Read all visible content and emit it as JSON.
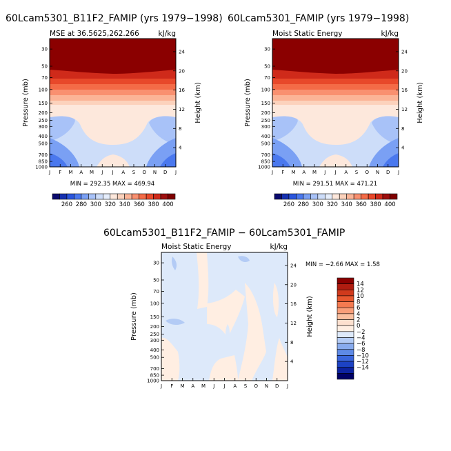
{
  "chart_data": [
    {
      "type": "heatmap",
      "title": "60Lcam5301_B11F2_FAMIP (yrs 1979−1998)",
      "left_string": "MSE at 36.5625,262.266",
      "right_string": "kJ/kg",
      "ylabel": "Pressure (mb)",
      "ylabel_right": "Height (km)",
      "x_ticks": [
        "J",
        "F",
        "M",
        "A",
        "M",
        "J",
        "J",
        "A",
        "S",
        "O",
        "N",
        "D",
        "J"
      ],
      "y_ticks": [
        "30",
        "50",
        "70",
        "100",
        "150",
        "200",
        "250",
        "300",
        "400",
        "500",
        "700",
        "850",
        "1000"
      ],
      "y_ticks_right": [
        "24",
        "20",
        "16",
        "12",
        "8",
        "4"
      ],
      "stats": "MIN = 292.35  MAX = 469.94",
      "colorbar_labels": [
        "260",
        "280",
        "300",
        "320",
        "340",
        "360",
        "380",
        "400"
      ],
      "colorbar_colors": [
        "#0a0a6e",
        "#1530b0",
        "#2a55dd",
        "#4a78ee",
        "#7aa0f4",
        "#a8c2f8",
        "#cdddf9",
        "#e6eefc",
        "#fde8dc",
        "#fcd2bc",
        "#fbb497",
        "#f99070",
        "#f46b47",
        "#e8482a",
        "#cf2a1a",
        "#9e0f0e",
        "#7f0000"
      ]
    },
    {
      "type": "heatmap",
      "title": "60Lcam5301_FAMIP (yrs 1979−1998)",
      "left_string": "Moist Static Energy",
      "right_string": "kJ/kg",
      "ylabel": "Pressure (mb)",
      "ylabel_right": "Height (km)",
      "x_ticks": [
        "J",
        "F",
        "M",
        "A",
        "M",
        "J",
        "J",
        "A",
        "S",
        "O",
        "N",
        "D",
        "J"
      ],
      "y_ticks": [
        "30",
        "50",
        "70",
        "100",
        "150",
        "200",
        "250",
        "300",
        "400",
        "500",
        "700",
        "850",
        "1000"
      ],
      "y_ticks_right": [
        "24",
        "20",
        "16",
        "12",
        "8",
        "4"
      ],
      "stats": "MIN = 291.51  MAX = 471.21",
      "colorbar_labels": [
        "260",
        "280",
        "300",
        "320",
        "340",
        "360",
        "380",
        "400"
      ],
      "colorbar_colors": [
        "#0a0a6e",
        "#1530b0",
        "#2a55dd",
        "#4a78ee",
        "#7aa0f4",
        "#a8c2f8",
        "#cdddf9",
        "#e6eefc",
        "#fde8dc",
        "#fcd2bc",
        "#fbb497",
        "#f99070",
        "#f46b47",
        "#e8482a",
        "#cf2a1a",
        "#9e0f0e",
        "#7f0000"
      ]
    },
    {
      "type": "heatmap",
      "title": "60Lcam5301_B11F2_FAMIP − 60Lcam5301_FAMIP",
      "left_string": "Moist Static Energy",
      "right_string": "kJ/kg",
      "ylabel": "Pressure (mb)",
      "ylabel_right": "Height (km)",
      "x_ticks": [
        "J",
        "F",
        "M",
        "A",
        "M",
        "J",
        "J",
        "A",
        "S",
        "O",
        "N",
        "D",
        "J"
      ],
      "y_ticks": [
        "30",
        "50",
        "70",
        "100",
        "150",
        "200",
        "250",
        "300",
        "400",
        "500",
        "700",
        "850",
        "1000"
      ],
      "y_ticks_right": [
        "24",
        "20",
        "16",
        "12",
        "8",
        "4"
      ],
      "stats": "MIN = −2.66  MAX =   1.58",
      "colorbar_labels": [
        "14",
        "12",
        "10",
        "8",
        "6",
        "4",
        "2",
        "0",
        "−2",
        "−4",
        "−6",
        "−8",
        "−10",
        "−12",
        "−14"
      ],
      "colorbar_colors": [
        "#8b0000",
        "#b01c10",
        "#d03a1c",
        "#e8582f",
        "#f47a50",
        "#f99e79",
        "#fbbf9f",
        "#fde0cf",
        "#ffeee2",
        "#dde9fa",
        "#b3cbf5",
        "#88abee",
        "#5e8ae6",
        "#3a66dc",
        "#1c42c4",
        "#0d22a0",
        "#000066"
      ]
    }
  ]
}
